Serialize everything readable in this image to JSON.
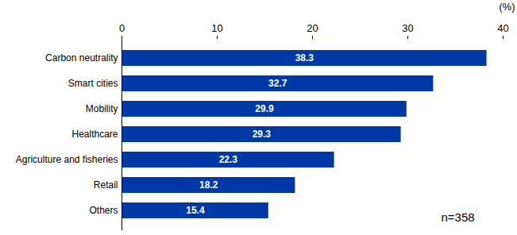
{
  "chart_data": {
    "type": "bar",
    "orientation": "horizontal",
    "categories": [
      "Carbon neutrality",
      "Smart cities",
      "Mobility",
      "Healthcare",
      "Agriculture and fisheries",
      "Retail",
      "Others"
    ],
    "values": [
      38.3,
      32.7,
      29.9,
      29.3,
      22.3,
      18.2,
      15.4
    ],
    "color": "#0039a6",
    "xlim": [
      0,
      40
    ],
    "xticks": [
      0,
      10,
      20,
      30,
      40
    ],
    "xlabel": "(%)",
    "annotations": [
      "n=358"
    ],
    "data_labels": true,
    "grid": false
  }
}
